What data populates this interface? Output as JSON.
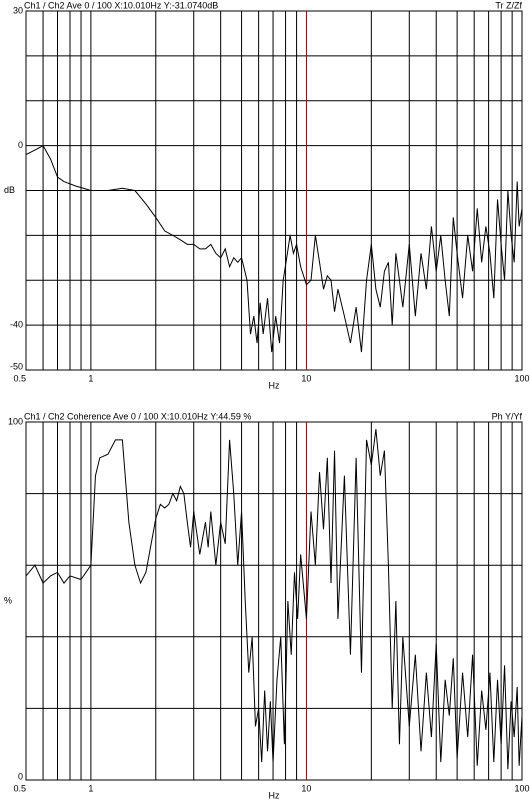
{
  "chart_data": [
    {
      "type": "line",
      "title": "Ch1 / Ch2  Ave 0 / 100  X:10.010Hz  Y:-31.0740dB",
      "mode_label": "Tr Z/Zf",
      "x_label": "Hz",
      "y_label": "dB",
      "xscale": "log",
      "xlim": [
        0.5,
        100
      ],
      "xticks": [
        0.5,
        1,
        10,
        100
      ],
      "ylim": [
        -50,
        30
      ],
      "yticks": [
        -50,
        -40,
        0,
        30
      ],
      "grid_step": 10,
      "cursor_x": 10.01,
      "cursor_color": "#c00000",
      "series": [
        {
          "color": "#000000",
          "x": [
            0.5,
            0.55,
            0.6,
            0.65,
            0.7,
            0.75,
            0.85,
            1,
            1.2,
            1.4,
            1.6,
            1.8,
            2,
            2.2,
            2.4,
            2.6,
            2.8,
            3,
            3.2,
            3.4,
            3.6,
            3.8,
            4,
            4.2,
            4.4,
            4.6,
            4.8,
            5,
            5.3,
            5.5,
            5.7,
            5.9,
            6.1,
            6.3,
            6.6,
            6.9,
            7.2,
            7.5,
            7.8,
            8.1,
            8.4,
            8.7,
            9,
            9.4,
            10,
            10.5,
            11,
            11.5,
            12,
            12.5,
            13,
            13.5,
            14,
            15,
            16,
            17,
            18,
            19,
            20,
            21,
            22,
            23,
            24,
            25,
            26,
            27,
            28,
            30,
            32,
            34,
            36,
            38,
            40,
            42,
            44,
            46,
            48,
            50,
            53,
            56,
            59,
            62,
            65,
            68,
            71,
            74,
            77,
            80,
            83,
            86,
            89,
            92,
            95,
            97,
            100
          ],
          "values": [
            -2,
            -1,
            0,
            -3,
            -7,
            -8,
            -9,
            -10,
            -10,
            -9.5,
            -10,
            -13,
            -16,
            -19,
            -20,
            -21,
            -22,
            -22,
            -23,
            -23,
            -22,
            -24,
            -25,
            -23,
            -27,
            -25,
            -26,
            -25,
            -30,
            -42,
            -38,
            -44,
            -35,
            -42,
            -34,
            -46,
            -38,
            -44,
            -30,
            -25,
            -20,
            -24,
            -22,
            -27,
            -31,
            -30,
            -20,
            -26,
            -32,
            -29,
            -30,
            -37,
            -32,
            -38,
            -44,
            -36,
            -46,
            -30,
            -22,
            -32,
            -36,
            -28,
            -26,
            -40,
            -24,
            -30,
            -36,
            -22,
            -38,
            -24,
            -32,
            -18,
            -28,
            -20,
            -30,
            -38,
            -16,
            -24,
            -34,
            -20,
            -28,
            -14,
            -26,
            -18,
            -24,
            -34,
            -12,
            -22,
            -30,
            -10,
            -20,
            -26,
            -8,
            -18,
            -14
          ]
        }
      ]
    },
    {
      "type": "line",
      "title": "Ch1 / Ch2  Coherence Ave 0 / 100  X:10.010Hz  Y:44.59 %",
      "mode_label": "Ph Y/Yf",
      "x_label": "Hz",
      "y_label": "%",
      "xscale": "log",
      "xlim": [
        0.5,
        100
      ],
      "xticks": [
        0.5,
        1,
        10,
        100
      ],
      "ylim": [
        0,
        100
      ],
      "yticks": [
        0,
        100
      ],
      "grid_step": 20,
      "cursor_x": 10.01,
      "cursor_color": "#c00000",
      "series": [
        {
          "color": "#000000",
          "x": [
            0.5,
            0.55,
            0.6,
            0.65,
            0.7,
            0.75,
            0.8,
            0.9,
            1,
            1.05,
            1.1,
            1.2,
            1.3,
            1.4,
            1.5,
            1.6,
            1.7,
            1.8,
            2,
            2.1,
            2.2,
            2.3,
            2.4,
            2.5,
            2.6,
            2.7,
            2.8,
            2.9,
            3,
            3.2,
            3.4,
            3.5,
            3.6,
            3.8,
            4,
            4.2,
            4.4,
            4.6,
            4.8,
            5,
            5.2,
            5.4,
            5.6,
            5.8,
            6,
            6.2,
            6.4,
            6.6,
            6.8,
            7,
            7.3,
            7.6,
            7.9,
            8.2,
            8.5,
            8.8,
            9.1,
            9.4,
            10,
            10.5,
            11,
            11.5,
            12,
            12.5,
            13,
            13.5,
            14,
            15,
            16,
            17,
            18,
            19,
            20,
            21,
            22,
            23,
            24,
            25,
            26,
            27,
            28,
            30,
            32,
            34,
            36,
            38,
            40,
            42,
            44,
            46,
            48,
            50,
            53,
            56,
            59,
            62,
            65,
            68,
            71,
            74,
            77,
            80,
            83,
            86,
            89,
            92,
            95,
            97,
            100
          ],
          "values": [
            57,
            60,
            55,
            57,
            58,
            55,
            57,
            56,
            60,
            85,
            90,
            91,
            95,
            95,
            72,
            60,
            55,
            58,
            73,
            77,
            76,
            77,
            80,
            78,
            82,
            80,
            72,
            65,
            75,
            63,
            72,
            65,
            75,
            60,
            72,
            66,
            95,
            80,
            60,
            75,
            50,
            30,
            40,
            15,
            20,
            5,
            25,
            8,
            22,
            5,
            28,
            40,
            10,
            50,
            35,
            58,
            45,
            63,
            45,
            75,
            60,
            86,
            70,
            90,
            55,
            92,
            45,
            85,
            35,
            90,
            30,
            95,
            88,
            98,
            85,
            92,
            60,
            20,
            50,
            10,
            40,
            15,
            35,
            8,
            30,
            12,
            38,
            5,
            28,
            18,
            34,
            6,
            30,
            12,
            35,
            4,
            25,
            14,
            30,
            5,
            28,
            10,
            32,
            3,
            22,
            12,
            26,
            4,
            18
          ]
        }
      ]
    }
  ]
}
